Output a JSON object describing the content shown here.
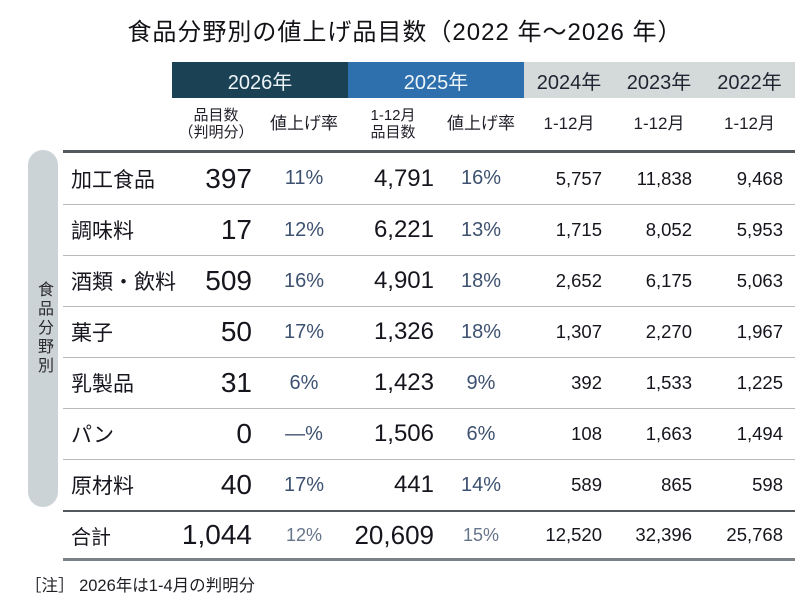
{
  "title": "食品分野別の値上げ品目数（2022 年～2026 年）",
  "sidebar_label": "食品分野別",
  "note": "［注］ 2026年は1-4月の判明分",
  "colors": {
    "band_2026": "#1b4254",
    "band_2025": "#2e6fad",
    "band_past_years": "#d4d9da",
    "percent_text": "#3d5170",
    "pill_background": "#ccd3d6",
    "thick_rule": "#54595e",
    "thin_rule": "#b9babc"
  },
  "header": {
    "groups": [
      "2026年",
      "2025年",
      "2024年",
      "2023年",
      "2022年"
    ],
    "sub": [
      {
        "line1": "品目数",
        "line2": "（判明分）"
      },
      {
        "line1": "値上げ率",
        "line2": ""
      },
      {
        "line1": "1-12月",
        "line2": "品目数"
      },
      {
        "line1": "値上げ率",
        "line2": ""
      },
      {
        "line1": "1-12月",
        "line2": ""
      },
      {
        "line1": "1-12月",
        "line2": ""
      },
      {
        "line1": "1-12月",
        "line2": ""
      }
    ]
  },
  "table": {
    "rows": [
      {
        "category": "加工食品",
        "values": [
          "397",
          "11%",
          "4,791",
          "16%",
          "5,757",
          "11,838",
          "9,468"
        ]
      },
      {
        "category": "調味料",
        "values": [
          "17",
          "12%",
          "6,221",
          "13%",
          "1,715",
          "8,052",
          "5,953"
        ]
      },
      {
        "category": "酒類・飲料",
        "values": [
          "509",
          "16%",
          "4,901",
          "18%",
          "2,652",
          "6,175",
          "5,063"
        ]
      },
      {
        "category": "菓子",
        "values": [
          "50",
          "17%",
          "1,326",
          "18%",
          "1,307",
          "2,270",
          "1,967"
        ]
      },
      {
        "category": "乳製品",
        "values": [
          "31",
          "6%",
          "1,423",
          "9%",
          "392",
          "1,533",
          "1,225"
        ]
      },
      {
        "category": "パン",
        "values": [
          "0",
          "—%",
          "1,506",
          "6%",
          "108",
          "1,663",
          "1,494"
        ]
      },
      {
        "category": "原材料",
        "values": [
          "40",
          "17%",
          "441",
          "14%",
          "589",
          "865",
          "598"
        ]
      }
    ],
    "total": {
      "category": "合計",
      "values": [
        "1,044",
        "12%",
        "20,609",
        "15%",
        "12,520",
        "32,396",
        "25,768"
      ]
    }
  },
  "chart_data": {
    "type": "table",
    "title": "食品分野別の値上げ品目数（2022年～2026年）",
    "row_axis_label": "食品分野別",
    "columns": [
      "食品分野",
      "2026年 品目数（判明分）",
      "2026年 値上げ率",
      "2025年 1-12月品目数",
      "2025年 値上げ率",
      "2024年 1-12月",
      "2023年 1-12月",
      "2022年 1-12月"
    ],
    "rows": [
      [
        "加工食品",
        397,
        "11%",
        4791,
        "16%",
        5757,
        11838,
        9468
      ],
      [
        "調味料",
        17,
        "12%",
        6221,
        "13%",
        1715,
        8052,
        5953
      ],
      [
        "酒類・飲料",
        509,
        "16%",
        4901,
        "18%",
        2652,
        6175,
        5063
      ],
      [
        "菓子",
        50,
        "17%",
        1326,
        "18%",
        1307,
        2270,
        1967
      ],
      [
        "乳製品",
        31,
        "6%",
        1423,
        "9%",
        392,
        1533,
        1225
      ],
      [
        "パン",
        0,
        "—%",
        1506,
        "6%",
        108,
        1663,
        1494
      ],
      [
        "原材料",
        40,
        "17%",
        441,
        "14%",
        589,
        865,
        598
      ],
      [
        "合計",
        1044,
        "12%",
        20609,
        "15%",
        12520,
        32396,
        25768
      ]
    ],
    "note": "2026年は1-4月の判明分"
  }
}
